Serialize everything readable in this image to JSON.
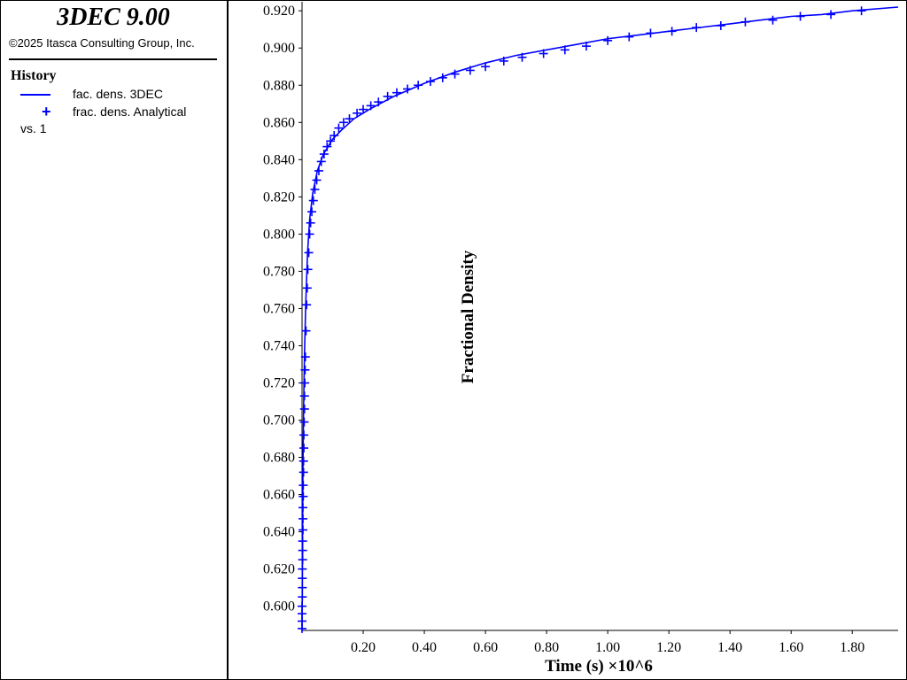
{
  "header": {
    "app_title": "3DEC 9.00",
    "copyright": "©2025 Itasca Consulting Group, Inc."
  },
  "legend": {
    "heading": "History",
    "items": [
      {
        "label": "fac. dens. 3DEC",
        "marker": "line",
        "color": "#0000ff"
      },
      {
        "label": "frac. dens. Analytical",
        "marker": "plus",
        "color": "#0000ff"
      }
    ],
    "vs_label": "vs. 1"
  },
  "colors": {
    "series": "#0000ff",
    "axis": "#000000",
    "background": "#ffffff"
  },
  "chart_data": {
    "type": "line",
    "xlabel": "Time (s) ×10^6",
    "ylabel": "Fractional Density",
    "xlim": [
      0.0,
      1.95
    ],
    "ylim": [
      0.587,
      0.922
    ],
    "x_ticks": [
      0.2,
      0.4,
      0.6,
      0.8,
      1.0,
      1.2,
      1.4,
      1.6,
      1.8
    ],
    "x_tick_labels": [
      "0.20",
      "0.40",
      "0.60",
      "0.80",
      "1.00",
      "1.20",
      "1.40",
      "1.60",
      "1.80"
    ],
    "y_ticks": [
      0.6,
      0.62,
      0.64,
      0.66,
      0.68,
      0.7,
      0.72,
      0.74,
      0.76,
      0.78,
      0.8,
      0.82,
      0.84,
      0.86,
      0.88,
      0.9,
      0.92
    ],
    "y_tick_labels": [
      "0.600",
      "0.620",
      "0.640",
      "0.660",
      "0.680",
      "0.700",
      "0.720",
      "0.740",
      "0.760",
      "0.780",
      "0.800",
      "0.820",
      "0.840",
      "0.860",
      "0.880",
      "0.900",
      "0.920"
    ],
    "grid": false,
    "legend_position": "left panel",
    "series": [
      {
        "name": "fac. dens. 3DEC",
        "style": "line",
        "x": [
          0.0,
          0.0005,
          0.001,
          0.002,
          0.003,
          0.005,
          0.008,
          0.012,
          0.018,
          0.025,
          0.035,
          0.05,
          0.07,
          0.1,
          0.13,
          0.17,
          0.22,
          0.3,
          0.4,
          0.5,
          0.6,
          0.7,
          0.8,
          0.9,
          1.0,
          1.1,
          1.2,
          1.3,
          1.4,
          1.5,
          1.6,
          1.7,
          1.8,
          1.95
        ],
        "y": [
          0.587,
          0.6,
          0.62,
          0.65,
          0.675,
          0.705,
          0.735,
          0.762,
          0.79,
          0.808,
          0.822,
          0.834,
          0.843,
          0.851,
          0.856,
          0.862,
          0.867,
          0.874,
          0.881,
          0.887,
          0.892,
          0.896,
          0.899,
          0.902,
          0.905,
          0.907,
          0.909,
          0.911,
          0.913,
          0.915,
          0.917,
          0.918,
          0.92,
          0.922
        ]
      },
      {
        "name": "frac. dens. Analytical",
        "style": "plus",
        "x": [
          0.0,
          0.0,
          0.0,
          0.0,
          0.001,
          0.001,
          0.001,
          0.001,
          0.002,
          0.002,
          0.002,
          0.003,
          0.003,
          0.003,
          0.004,
          0.004,
          0.005,
          0.005,
          0.006,
          0.006,
          0.007,
          0.008,
          0.008,
          0.009,
          0.01,
          0.011,
          0.013,
          0.015,
          0.017,
          0.019,
          0.022,
          0.025,
          0.028,
          0.032,
          0.037,
          0.042,
          0.048,
          0.055,
          0.063,
          0.072,
          0.082,
          0.093,
          0.105,
          0.12,
          0.136,
          0.155,
          0.18,
          0.2,
          0.225,
          0.25,
          0.28,
          0.31,
          0.345,
          0.38,
          0.42,
          0.46,
          0.5,
          0.55,
          0.6,
          0.66,
          0.72,
          0.79,
          0.86,
          0.93,
          1.0,
          1.07,
          1.14,
          1.21,
          1.29,
          1.37,
          1.45,
          1.54,
          1.63,
          1.73,
          1.83
        ],
        "y": [
          0.588,
          0.592,
          0.596,
          0.6,
          0.605,
          0.61,
          0.615,
          0.62,
          0.625,
          0.63,
          0.635,
          0.641,
          0.647,
          0.653,
          0.659,
          0.665,
          0.672,
          0.678,
          0.685,
          0.692,
          0.699,
          0.706,
          0.713,
          0.72,
          0.727,
          0.734,
          0.748,
          0.762,
          0.771,
          0.781,
          0.79,
          0.8,
          0.806,
          0.812,
          0.818,
          0.824,
          0.829,
          0.834,
          0.839,
          0.843,
          0.847,
          0.85,
          0.853,
          0.857,
          0.86,
          0.862,
          0.865,
          0.867,
          0.869,
          0.871,
          0.874,
          0.876,
          0.878,
          0.88,
          0.882,
          0.884,
          0.886,
          0.888,
          0.89,
          0.893,
          0.895,
          0.897,
          0.899,
          0.901,
          0.904,
          0.906,
          0.908,
          0.909,
          0.911,
          0.912,
          0.914,
          0.915,
          0.917,
          0.918,
          0.92
        ]
      }
    ]
  }
}
